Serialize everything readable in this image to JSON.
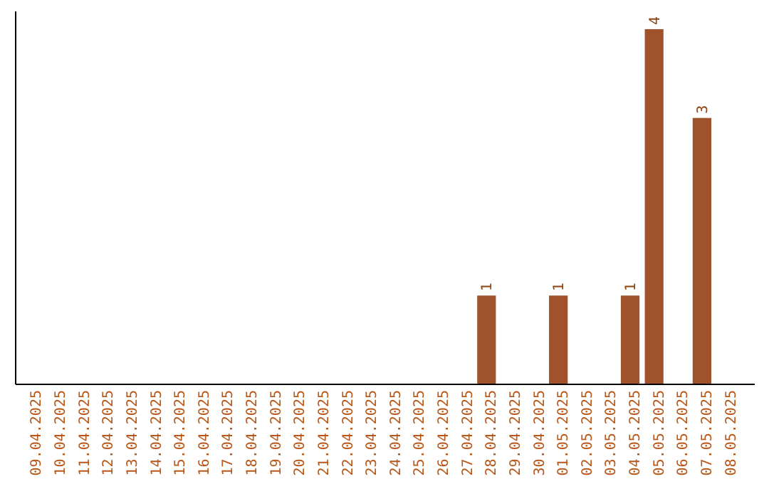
{
  "chart_data": {
    "type": "bar",
    "categories": [
      "09.04.2025",
      "10.04.2025",
      "11.04.2025",
      "12.04.2025",
      "13.04.2025",
      "14.04.2025",
      "15.04.2025",
      "16.04.2025",
      "17.04.2025",
      "18.04.2025",
      "19.04.2025",
      "20.04.2025",
      "21.04.2025",
      "22.04.2025",
      "23.04.2025",
      "24.04.2025",
      "25.04.2025",
      "26.04.2025",
      "27.04.2025",
      "28.04.2025",
      "29.04.2025",
      "30.04.2025",
      "01.05.2025",
      "02.05.2025",
      "03.05.2025",
      "04.05.2025",
      "05.05.2025",
      "06.05.2025",
      "07.05.2025",
      "08.05.2025"
    ],
    "values": [
      null,
      null,
      null,
      null,
      null,
      null,
      null,
      null,
      null,
      null,
      null,
      null,
      null,
      null,
      null,
      null,
      null,
      null,
      null,
      1,
      null,
      null,
      1,
      null,
      null,
      1,
      4,
      null,
      3,
      null
    ],
    "data_labels": true,
    "color": "#a0522d"
  }
}
